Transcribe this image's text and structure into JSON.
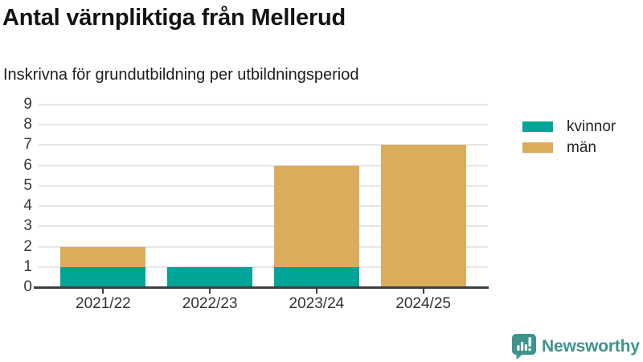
{
  "header": {
    "title": "Antal värnpliktiga från Mellerud",
    "subtitle": "Inskrivna för grundutbildning per utbildningsperiod"
  },
  "chart_data": {
    "type": "bar",
    "stacked": true,
    "title": "Antal värnpliktiga från Mellerud",
    "subtitle": "Inskrivna för grundutbildning per utbildningsperiod",
    "categories": [
      "2021/22",
      "2022/23",
      "2023/24",
      "2024/25"
    ],
    "series": [
      {
        "name": "kvinnor",
        "color": "#00a498",
        "values": [
          1,
          1,
          1,
          0
        ]
      },
      {
        "name": "män",
        "color": "#d9ad5c",
        "values": [
          1,
          0,
          5,
          7
        ]
      }
    ],
    "totals": [
      2,
      1,
      6,
      7
    ],
    "xlabel": "",
    "ylabel": "",
    "ylim": [
      0,
      9
    ],
    "yticks": [
      0,
      1,
      2,
      3,
      4,
      5,
      6,
      7,
      8,
      9
    ],
    "grid": true,
    "legend_position": "right"
  },
  "colors": {
    "kvinnor": "#00a498",
    "man": "#d9ad5c",
    "axis": "#3d4043",
    "gridline": "#e6e6e6",
    "brand": "#3e938b"
  },
  "footer": {
    "brand": "Newsworthy"
  }
}
